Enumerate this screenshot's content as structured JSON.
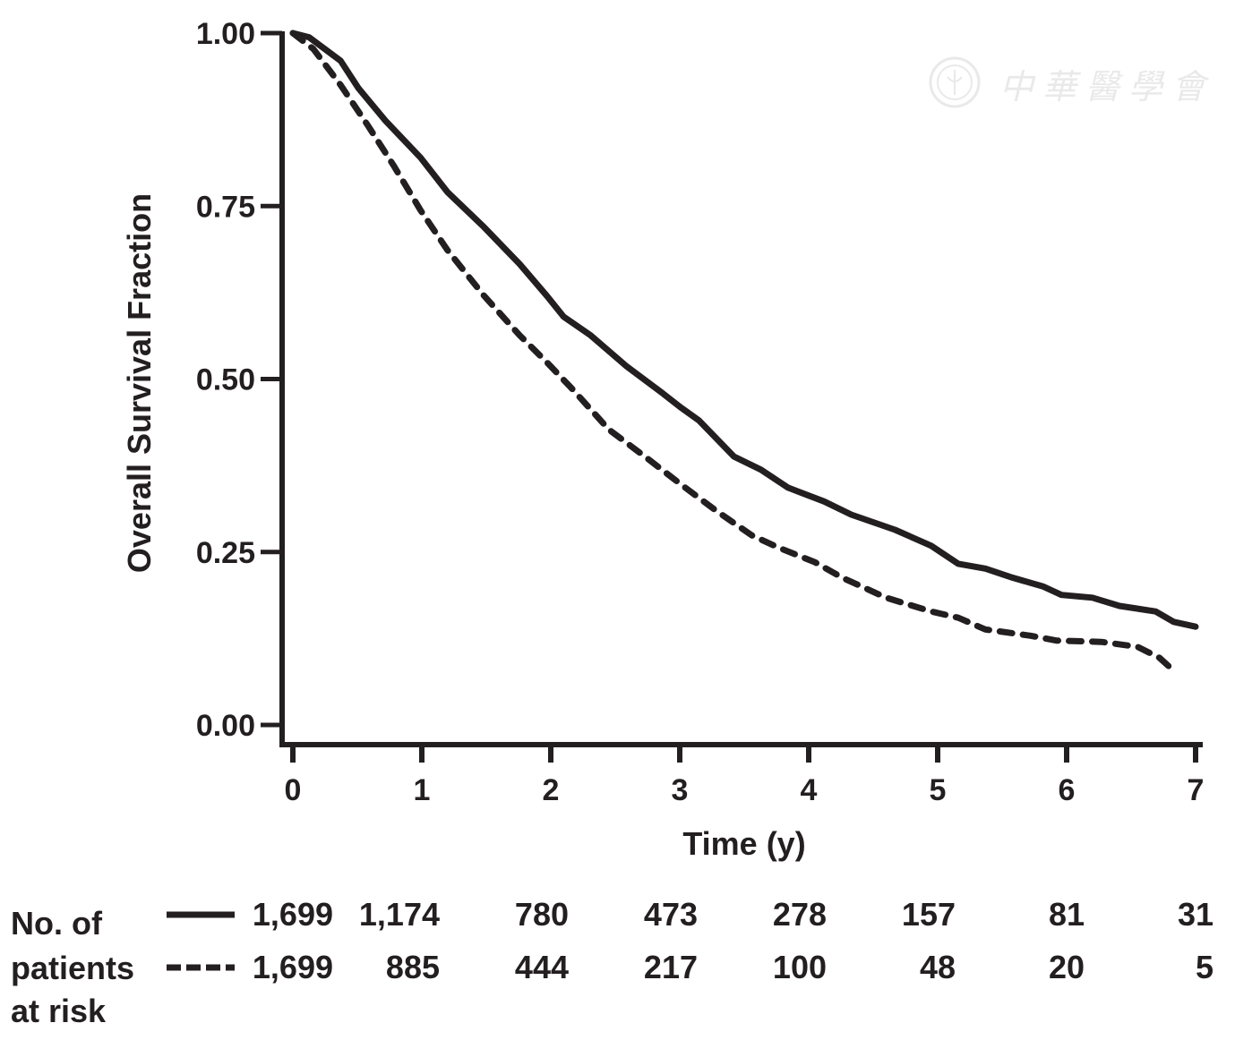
{
  "chart_data": {
    "type": "line",
    "title": "",
    "xlabel": "Time (y)",
    "ylabel": "Overall Survival Fraction",
    "xlim": [
      0,
      7
    ],
    "ylim": [
      0,
      1
    ],
    "x_ticks": [
      "0",
      "1",
      "2",
      "3",
      "4",
      "5",
      "6",
      "7"
    ],
    "y_ticks": [
      "0.00",
      "0.25",
      "0.50",
      "0.75",
      "1.00"
    ],
    "x_tick_values": [
      0,
      1,
      2,
      3,
      4,
      5,
      6,
      7
    ],
    "y_tick_values": [
      0,
      0.25,
      0.5,
      0.75,
      1.0
    ],
    "grid": false,
    "series": [
      {
        "name": "solid",
        "style": "solid",
        "color": "#231f20",
        "x": [
          0,
          0.125,
          0.37,
          0.51,
          0.72,
          0.99,
          1.2,
          1.48,
          1.76,
          1.97,
          2.1,
          2.31,
          2.59,
          2.87,
          3.0,
          3.15,
          3.42,
          3.63,
          3.84,
          4.12,
          4.33,
          4.67,
          4.95,
          5.16,
          5.37,
          5.58,
          5.82,
          5.96,
          6.2,
          6.41,
          6.69,
          6.83,
          7.0
        ],
        "y": [
          1.0,
          0.994,
          0.96,
          0.92,
          0.873,
          0.82,
          0.77,
          0.72,
          0.666,
          0.62,
          0.59,
          0.563,
          0.518,
          0.479,
          0.46,
          0.44,
          0.388,
          0.369,
          0.343,
          0.323,
          0.304,
          0.282,
          0.259,
          0.233,
          0.226,
          0.213,
          0.2,
          0.188,
          0.184,
          0.172,
          0.164,
          0.149,
          0.142
        ]
      },
      {
        "name": "dashed",
        "style": "dashed",
        "color": "#231f20",
        "x": [
          0,
          0.16,
          0.37,
          0.58,
          0.78,
          0.99,
          1.2,
          1.48,
          1.76,
          1.97,
          2.17,
          2.45,
          2.73,
          3.0,
          3.28,
          3.56,
          3.77,
          4.05,
          4.26,
          4.6,
          4.95,
          5.16,
          5.37,
          5.72,
          5.92,
          6.27,
          6.55,
          6.72,
          6.85
        ],
        "y": [
          1.0,
          0.977,
          0.925,
          0.867,
          0.809,
          0.744,
          0.686,
          0.621,
          0.563,
          0.524,
          0.485,
          0.427,
          0.388,
          0.349,
          0.31,
          0.274,
          0.256,
          0.235,
          0.213,
          0.184,
          0.164,
          0.155,
          0.138,
          0.129,
          0.122,
          0.12,
          0.113,
          0.097,
          0.075
        ]
      }
    ],
    "risk_table": {
      "label_lines": [
        "No. of",
        "patients",
        "at risk"
      ],
      "rows": [
        {
          "style": "solid",
          "values": [
            "1,699",
            "1,174",
            "780",
            "473",
            "278",
            "157",
            "81",
            "31"
          ]
        },
        {
          "style": "dashed",
          "values": [
            "1,699",
            "885",
            "444",
            "217",
            "100",
            "48",
            "20",
            "5"
          ]
        }
      ]
    }
  },
  "watermark": {
    "text": "中華醫學會",
    "icon": "society-seal-icon"
  }
}
